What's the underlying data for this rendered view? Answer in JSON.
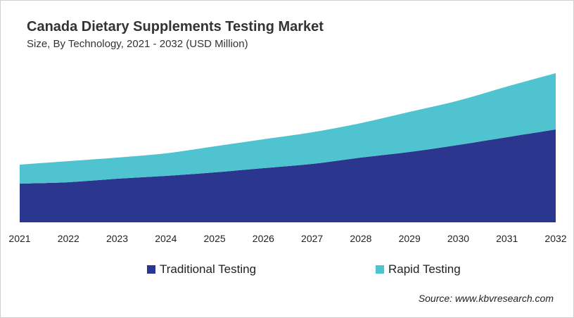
{
  "chart_data": {
    "type": "area",
    "stacked": true,
    "title": "Canada Dietary Supplements Testing Market",
    "subtitle": "Size, By Technology, 2021 - 2032 (USD Million)",
    "categories": [
      "2021",
      "2022",
      "2023",
      "2024",
      "2025",
      "2026",
      "2027",
      "2028",
      "2029",
      "2030",
      "2031",
      "2032"
    ],
    "series": [
      {
        "name": "Traditional Testing",
        "color": "#2b378f",
        "values": [
          55,
          57,
          62,
          66,
          71,
          77,
          83,
          92,
          100,
          110,
          121,
          132
        ]
      },
      {
        "name": "Rapid Testing",
        "color": "#4fc3cf",
        "values": [
          27,
          30,
          30,
          32,
          37,
          41,
          45,
          49,
          57,
          63,
          72,
          80
        ]
      }
    ],
    "ylim": [
      0,
      220
    ],
    "y_axis_shown": false,
    "grid": false,
    "legend_position": "bottom",
    "source": "Source: www.kbvresearch.com"
  }
}
